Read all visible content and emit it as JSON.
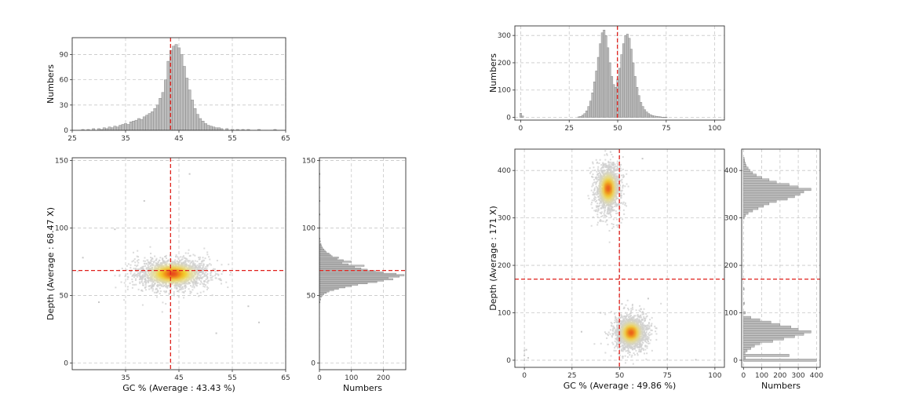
{
  "chart_data": [
    {
      "type": "bar",
      "panel": "left-top-histogram",
      "title": "",
      "xlabel": "",
      "ylabel": "Numbers",
      "xlim": [
        25,
        65
      ],
      "ylim": [
        0,
        110
      ],
      "xticks": [
        25,
        35,
        45,
        55,
        65
      ],
      "yticks": [
        0,
        30,
        60,
        90
      ],
      "mean_line": 43.43,
      "bin_width": 0.5,
      "x": [
        27,
        28,
        29,
        30,
        30.5,
        31,
        31.5,
        32,
        32.5,
        33,
        33.5,
        34,
        34.5,
        35,
        35.5,
        36,
        36.5,
        37,
        37.5,
        38,
        38.5,
        39,
        39.5,
        40,
        40.5,
        41,
        41.5,
        42,
        42.5,
        43,
        43.5,
        44,
        44.5,
        45,
        45.5,
        46,
        46.5,
        47,
        47.5,
        48,
        48.5,
        49,
        49.5,
        50,
        50.5,
        51,
        51.5,
        52,
        52.5,
        53,
        54,
        55,
        56,
        57,
        58,
        60,
        63
      ],
      "values": [
        1,
        1,
        2,
        2,
        1,
        3,
        2,
        4,
        3,
        5,
        4,
        6,
        7,
        8,
        7,
        10,
        11,
        12,
        14,
        13,
        16,
        18,
        20,
        22,
        26,
        30,
        38,
        45,
        60,
        82,
        95,
        100,
        102,
        98,
        90,
        76,
        62,
        48,
        36,
        26,
        19,
        14,
        11,
        8,
        6,
        5,
        4,
        3,
        3,
        2,
        2,
        1,
        1,
        1,
        1,
        1,
        1
      ]
    },
    {
      "type": "scatter",
      "panel": "left-main-density",
      "title": "",
      "xlabel": "GC % (Average : 43.43 %)",
      "ylabel": "Depth (Average : 68.47 X)",
      "xlim": [
        25,
        65
      ],
      "ylim": [
        -5,
        152
      ],
      "xticks": [
        35,
        45,
        55,
        65
      ],
      "yticks": [
        0,
        50,
        100,
        150
      ],
      "mean_x": 43.43,
      "mean_y": 68.47,
      "grid": true,
      "clusters": [
        {
          "center": [
            43.8,
            66
          ],
          "spread": [
            3.6,
            5.5
          ],
          "count": 1800
        }
      ],
      "outliers": [
        [
          38.5,
          120
        ],
        [
          52,
          22
        ],
        [
          60,
          30
        ],
        [
          27,
          78
        ],
        [
          33,
          99
        ],
        [
          58,
          42
        ],
        [
          47,
          140
        ],
        [
          30,
          45
        ],
        [
          55,
          105
        ]
      ]
    },
    {
      "type": "bar",
      "orientation": "horizontal",
      "panel": "left-right-histogram",
      "title": "",
      "xlabel": "Numbers",
      "ylabel": "",
      "xlim": [
        0,
        270
      ],
      "ylim": [
        -5,
        152
      ],
      "xticks": [
        0,
        100,
        200
      ],
      "yticks": [
        0,
        50,
        100,
        150
      ],
      "mean_line": 68.47,
      "bin_width": 1,
      "y": [
        45,
        47,
        49,
        50,
        51,
        52,
        53,
        54,
        55,
        56,
        57,
        58,
        59,
        60,
        61,
        62,
        63,
        64,
        65,
        66,
        67,
        68,
        69,
        70,
        71,
        72,
        73,
        74,
        75,
        76,
        77,
        78,
        79,
        80,
        81,
        82,
        83,
        84,
        85,
        86,
        87,
        88,
        90,
        92,
        100,
        110,
        120,
        130,
        140,
        150
      ],
      "values": [
        2,
        4,
        6,
        10,
        14,
        22,
        30,
        45,
        60,
        80,
        100,
        120,
        150,
        180,
        200,
        230,
        215,
        250,
        265,
        240,
        200,
        175,
        150,
        130,
        110,
        140,
        90,
        70,
        100,
        75,
        55,
        60,
        40,
        35,
        30,
        22,
        18,
        14,
        10,
        8,
        6,
        5,
        3,
        2,
        1,
        1,
        1,
        1,
        1,
        1
      ]
    },
    {
      "type": "bar",
      "panel": "right-top-histogram",
      "title": "",
      "xlabel": "",
      "ylabel": "Numbers",
      "xlim": [
        -3,
        105
      ],
      "ylim": [
        -10,
        335
      ],
      "xticks": [
        0,
        25,
        50,
        75,
        100
      ],
      "yticks": [
        0,
        100,
        200,
        300
      ],
      "mean_line": 49.86,
      "bin_width": 1,
      "x": [
        0,
        1,
        30,
        31,
        32,
        33,
        34,
        35,
        36,
        37,
        38,
        39,
        40,
        41,
        42,
        43,
        44,
        45,
        46,
        47,
        48,
        49,
        50,
        51,
        52,
        53,
        54,
        55,
        56,
        57,
        58,
        59,
        60,
        61,
        62,
        63,
        64,
        65,
        66,
        67,
        68,
        69,
        70,
        71,
        72,
        73,
        74,
        75
      ],
      "values": [
        15,
        5,
        2,
        4,
        8,
        14,
        24,
        40,
        60,
        90,
        130,
        170,
        220,
        270,
        310,
        320,
        300,
        255,
        200,
        150,
        120,
        110,
        140,
        180,
        230,
        270,
        300,
        305,
        290,
        250,
        200,
        150,
        110,
        80,
        55,
        40,
        28,
        20,
        14,
        10,
        7,
        5,
        4,
        3,
        2,
        1,
        1,
        1
      ]
    },
    {
      "type": "scatter",
      "panel": "right-main-density",
      "title": "",
      "xlabel": "GC % (Average : 49.86 %)",
      "ylabel": "Depth (Average : 171 X)",
      "xlim": [
        -5,
        105
      ],
      "ylim": [
        -15,
        445
      ],
      "xticks": [
        0,
        25,
        50,
        75,
        100
      ],
      "yticks": [
        0,
        100,
        200,
        300,
        400
      ],
      "mean_x": 49.86,
      "mean_y": 171,
      "grid": true,
      "clusters": [
        {
          "center": [
            44,
            362
          ],
          "spread": [
            3.2,
            26
          ],
          "count": 1400
        },
        {
          "center": [
            56,
            58
          ],
          "spread": [
            4.2,
            18
          ],
          "count": 1700
        }
      ],
      "outliers": [
        [
          0,
          20
        ],
        [
          0,
          10
        ],
        [
          1,
          22
        ],
        [
          2,
          5
        ],
        [
          0,
          0
        ],
        [
          62,
          425
        ],
        [
          75,
          2
        ],
        [
          90,
          1
        ],
        [
          40,
          100
        ],
        [
          30,
          60
        ],
        [
          65,
          130
        ]
      ]
    },
    {
      "type": "bar",
      "orientation": "horizontal",
      "panel": "right-right-histogram",
      "title": "",
      "xlabel": "Numbers",
      "ylabel": "",
      "xlim": [
        -10,
        420
      ],
      "ylim": [
        -15,
        445
      ],
      "xticks": [
        0,
        100,
        200,
        300,
        400
      ],
      "yticks": [
        0,
        100,
        200,
        300,
        400
      ],
      "mean_line": 171,
      "bin_width": 5,
      "y": [
        0,
        5,
        10,
        15,
        20,
        25,
        30,
        35,
        40,
        45,
        50,
        55,
        60,
        65,
        70,
        75,
        80,
        85,
        90,
        100,
        120,
        150,
        300,
        305,
        310,
        315,
        320,
        325,
        330,
        335,
        340,
        345,
        350,
        355,
        360,
        365,
        370,
        375,
        380,
        385,
        390,
        395,
        400,
        405,
        410,
        415,
        420,
        425
      ],
      "values": [
        400,
        10,
        250,
        8,
        20,
        40,
        60,
        90,
        160,
        220,
        280,
        330,
        370,
        300,
        260,
        200,
        150,
        90,
        40,
        10,
        5,
        3,
        3,
        10,
        25,
        50,
        80,
        110,
        140,
        180,
        240,
        280,
        310,
        330,
        370,
        300,
        250,
        180,
        140,
        100,
        70,
        50,
        35,
        25,
        15,
        10,
        6,
        4
      ]
    }
  ]
}
